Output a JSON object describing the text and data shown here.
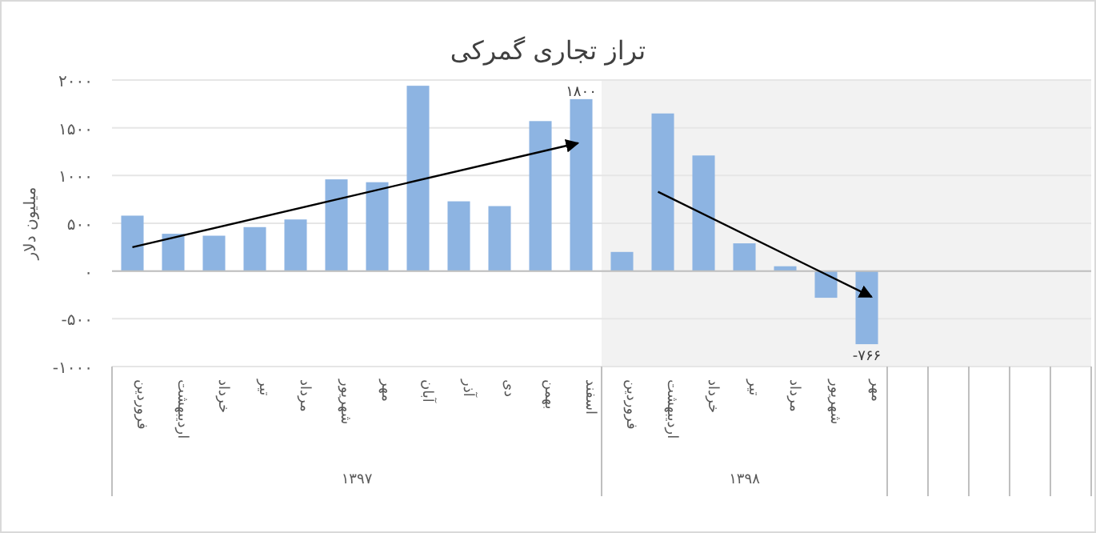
{
  "chart_data": {
    "type": "bar",
    "title": "تراز تجاری گمرکی",
    "ylabel": "میلیون دلار",
    "categories": [
      "فروردین",
      "اردیبهشت",
      "خرداد",
      "تیر",
      "مرداد",
      "شهریور",
      "مهر",
      "آبان",
      "آذر",
      "دی",
      "بهمن",
      "اسفند",
      "فروردین",
      "اردیبهشت",
      "خرداد",
      "تیر",
      "مرداد",
      "شهریور",
      "مهر",
      null,
      null,
      null,
      null,
      null
    ],
    "values": [
      580,
      390,
      370,
      460,
      540,
      960,
      930,
      1940,
      730,
      680,
      1570,
      1800,
      200,
      1650,
      1210,
      290,
      50,
      -280,
      -766,
      null,
      null,
      null,
      null,
      null
    ],
    "value_labels": [
      null,
      null,
      null,
      null,
      null,
      null,
      null,
      null,
      null,
      null,
      null,
      "۱۸۰۰",
      null,
      null,
      null,
      null,
      null,
      null,
      "-۷۶۶",
      null,
      null,
      null,
      null,
      null
    ],
    "color": "#8db4e2",
    "ylim": [
      -1000,
      2000
    ],
    "yticks": [
      {
        "value": -1000,
        "label": "-۱۰۰۰"
      },
      {
        "value": -500,
        "label": "-۵۰۰"
      },
      {
        "value": 0,
        "label": "۰"
      },
      {
        "value": 500,
        "label": "۵۰۰"
      },
      {
        "value": 1000,
        "label": "۱۰۰۰"
      },
      {
        "value": 1500,
        "label": "۱۵۰۰"
      },
      {
        "value": 2000,
        "label": "۲۰۰۰"
      }
    ],
    "grid": "y",
    "annotations": [
      "۱۳۹۷",
      "۱۳۹۸"
    ]
  }
}
